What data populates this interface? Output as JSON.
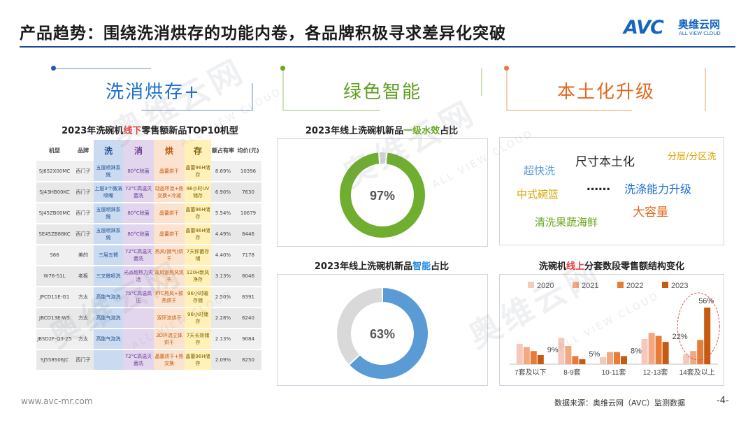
{
  "header": {
    "title": "产品趋势：围绕洗消烘存的功能内卷，各品牌积极寻求差异化突破",
    "logo_mark": "AVC",
    "logo_cn": "奥维云网",
    "logo_en": "ALL VIEW CLOUD"
  },
  "sections": {
    "s1": "洗消烘存+",
    "s2": "绿色智能",
    "s3": "本土化升级"
  },
  "table_block": {
    "title_pre": "2023年洗碗机",
    "title_hl": "线下",
    "title_post": "零售额新品TOP10机型",
    "headers": [
      "机型",
      "品牌",
      "洗",
      "消",
      "烘",
      "存",
      "额占有率",
      "均价(元)"
    ],
    "rows": [
      [
        "SJ652X00MC",
        "西门子",
        "五层喷淋系统",
        "80°C除菌",
        "晶蕾烘干",
        "晶蕾96H储存",
        "8.69%",
        "10396"
      ],
      [
        "SJ43HB00KC",
        "西门子",
        "上层3个微涡喷嘴",
        "72°C高温灭菌洗",
        "动态环流+热交换+冷凝",
        "96小时UV储存",
        "6.90%",
        "7630"
      ],
      [
        "SJ45ZB00MC",
        "西门子",
        "五层喷淋系统",
        "80°C除菌",
        "晶蕾烘干",
        "晶蕾96H储存",
        "5.54%",
        "10679"
      ],
      [
        "SE45ZB88KC",
        "西门子",
        "五层喷淋系统",
        "80°C除菌",
        "晶蕾烘干",
        "晶蕾96H储存",
        "4.49%",
        "8446"
      ],
      [
        "S66",
        "美的",
        "三层五臂",
        "72°C高温灭菌洗",
        "热风(换气)烘干",
        "7天抑菌存储",
        "4.40%",
        "7178"
      ],
      [
        "W76-S1L",
        "老板",
        "三叉鲸喷洗",
        "光焱超热力灭活",
        "双风道热风烘干",
        "120H新风净存",
        "3.13%",
        "8046"
      ],
      [
        "JPCD11E-G1",
        "方太",
        "高能气泡洗",
        "75°C高温高压",
        "PTC热风+预热烘干",
        "96小时暖存储",
        "2.50%",
        "8391"
      ],
      [
        "JBCD13E-W5",
        "方太",
        "高能气泡洗",
        "",
        "双环流烘干",
        "96小时储存",
        "2.28%",
        "6240"
      ],
      [
        "JBSD2F-Q3-Z5",
        "方太",
        "高能气泡洗",
        "",
        "3D环流立体烘干",
        "7天长效储存",
        "2.13%",
        "9084"
      ],
      [
        "SJ558S06JC",
        "西门子",
        "",
        "72°C高温灭菌洗",
        "晶蕾烘干+热交换",
        "晶蕾96H储存",
        "2.09%",
        "8250"
      ]
    ]
  },
  "keywords": {
    "items": [
      "超快洗",
      "尺寸本土化",
      "分层/分区洗",
      "中式碗篮",
      "……",
      "洗涤能力升级",
      "大容量",
      "清洗果蔬海鲜"
    ]
  },
  "chart_data": [
    {
      "type": "pie",
      "title": "2023年线上洗碗机新品一级水效占比",
      "title_parts": [
        "2023年线上洗碗机新品",
        "一级水效",
        "占比"
      ],
      "values": [
        97,
        3
      ],
      "center_label": "97%",
      "colors": [
        "#6fae2e",
        "#d9d9d9"
      ]
    },
    {
      "type": "pie",
      "title": "2023年线上洗碗机新品智能占比",
      "title_parts": [
        "2023年线上洗碗机新品",
        "智能",
        "占比"
      ],
      "values": [
        63,
        37
      ],
      "center_label": "63%",
      "colors": [
        "#5b9bd5",
        "#d9d9d9"
      ]
    },
    {
      "type": "bar",
      "title": "洗碗机线上分套数段零售额结构变化",
      "title_parts": [
        "洗碗机",
        "线上",
        "分套数段零售额结构变化"
      ],
      "categories": [
        "7套及以下",
        "8-9套",
        "10-11套",
        "12-13套",
        "14套及以上"
      ],
      "series": [
        {
          "name": "2020",
          "values": [
            20,
            26,
            7,
            25,
            10
          ],
          "color": "#f6c8bb"
        },
        {
          "name": "2021",
          "values": [
            17,
            18,
            12,
            31,
            13
          ],
          "color": "#f1a883"
        },
        {
          "name": "2022",
          "values": [
            13,
            8,
            12,
            28,
            24
          ],
          "color": "#e97b39"
        },
        {
          "name": "2023",
          "values": [
            9,
            5,
            8,
            22,
            56
          ],
          "color": "#c55a11"
        }
      ],
      "labels": [
        "9%",
        "5%",
        "8%",
        "22%",
        "56%"
      ],
      "ylim": [
        0,
        65
      ]
    }
  ],
  "footer": {
    "website": "www.avc-mr.com",
    "source": "数据来源：奥维云网（AVC）监测数据",
    "page": "-4-"
  },
  "watermark": {
    "cn": "奥维云网",
    "en": "ALL VIEW CLOUD"
  }
}
